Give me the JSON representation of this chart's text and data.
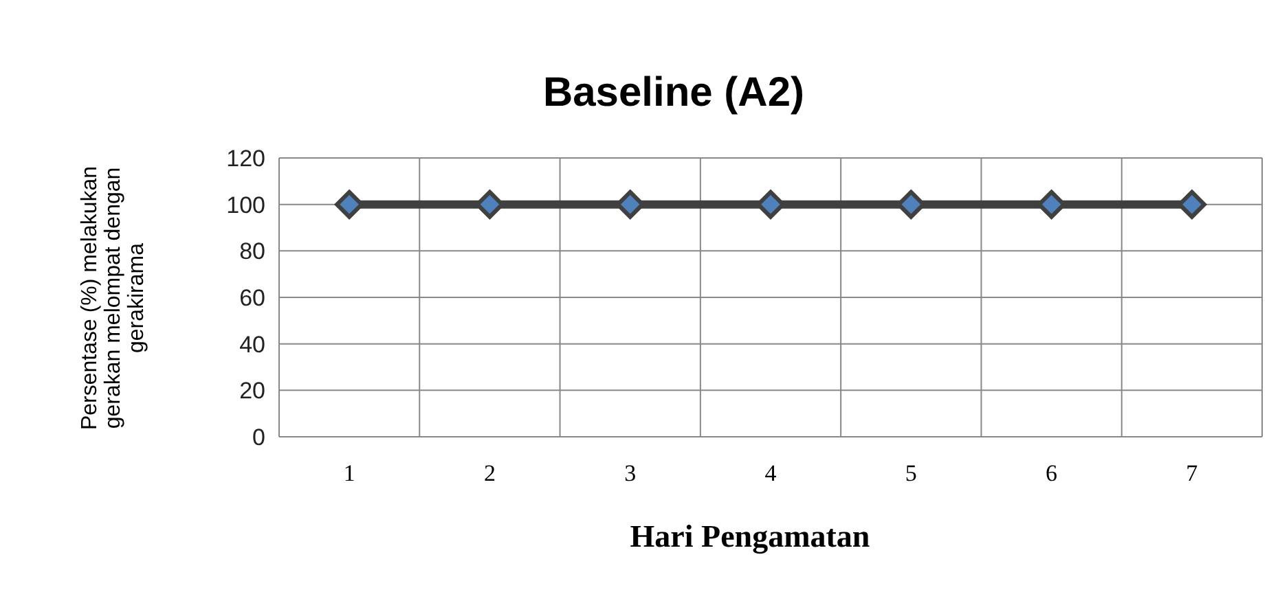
{
  "chart_data": {
    "type": "line",
    "title": "Baseline (A2)",
    "xlabel": "Hari  Pengamatan",
    "ylabel": "Persentase (%)  melakukan\ngerakan melompat dengan\ngerakirama",
    "categories": [
      "1",
      "2",
      "3",
      "4",
      "5",
      "6",
      "7"
    ],
    "series": [
      {
        "color": "#404040",
        "values": [
          100,
          100,
          100,
          100,
          100,
          100,
          100
        ]
      }
    ],
    "ylim": [
      0,
      120
    ],
    "yticks": [
      0,
      20,
      40,
      60,
      80,
      100,
      120
    ],
    "grid": true,
    "marker": "diamond",
    "line_style": "solid"
  }
}
